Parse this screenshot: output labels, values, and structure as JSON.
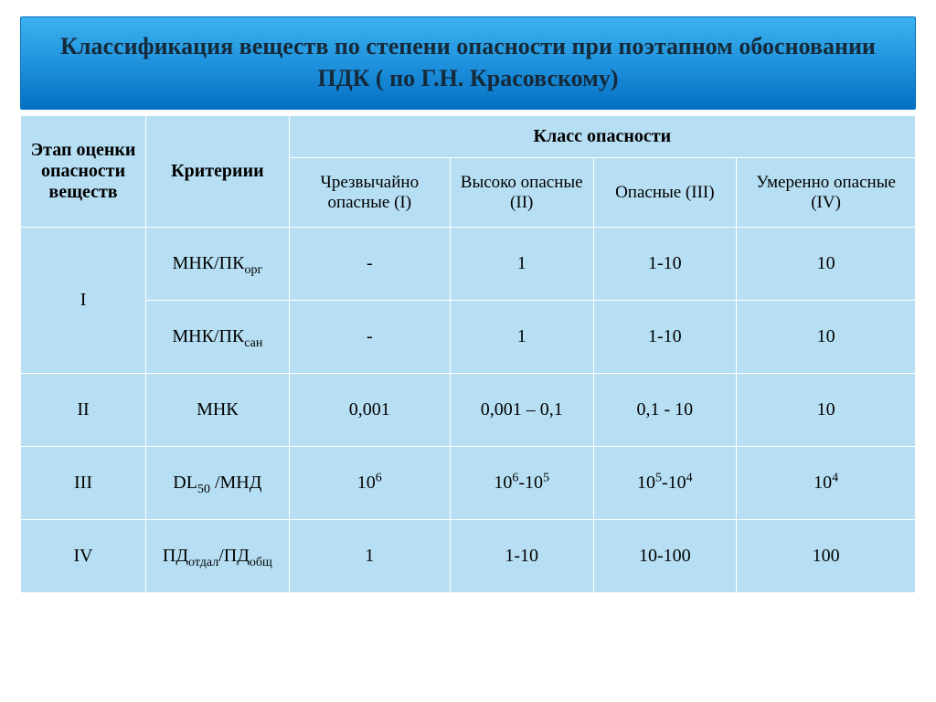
{
  "colors": {
    "header_gradient_top": "#3cb3ef",
    "header_gradient_mid": "#1d8fdb",
    "header_gradient_bottom": "#0570c2",
    "cell_bg": "#b7dff3",
    "cell_border": "#ffffff",
    "title_text": "#152a3a",
    "body_text": "#000000"
  },
  "typography": {
    "title_fontsize_pt": 20,
    "header_fontsize_pt": 15,
    "body_fontsize_pt": 15,
    "font_family": "Times New Roman"
  },
  "title": "Классификация веществ по степени опасности при поэтапном обосновании ПДК ( по Г.Н. Красовскому)",
  "table": {
    "type": "table",
    "header": {
      "stage_col": "Этап оценки опасности веществ",
      "criteria_col": "Критериии",
      "class_group": "Класс опасности",
      "classes": [
        "Чрезвычайно опасные (I)",
        "Высоко опасные (II)",
        "Опасные (III)",
        "Умеренно опасные (IV)"
      ]
    },
    "column_widths_pct": [
      14,
      16,
      18,
      16,
      16,
      20
    ],
    "rows": [
      {
        "stage": "I",
        "stage_rowspan": 2,
        "criterion_html": "МНК/ПК<sub>орг</sub>",
        "values": [
          "-",
          "1",
          "1-10",
          "10"
        ]
      },
      {
        "stage": "",
        "stage_rowspan": 0,
        "criterion_html": "МНК/ПК<sub>сан</sub>",
        "values": [
          "-",
          "1",
          "1-10",
          "10"
        ]
      },
      {
        "stage": "II",
        "stage_rowspan": 1,
        "criterion_html": "МНК",
        "values": [
          "0,001",
          "0,001 – 0,1",
          "0,1 - 10",
          "10"
        ]
      },
      {
        "stage": "III",
        "stage_rowspan": 1,
        "criterion_html": "DL<sub>50</sub> /МНД",
        "values_html": [
          "10<sup>6</sup>",
          "10<sup>6</sup>-10<sup>5</sup>",
          "10<sup>5</sup>-10<sup>4</sup>",
          "10<sup>4</sup>"
        ]
      },
      {
        "stage": "IV",
        "stage_rowspan": 1,
        "criterion_html": "ПД<sub>отдал</sub>/ПД<sub>общ</sub>",
        "values": [
          "1",
          "1-10",
          "10-100",
          "100"
        ]
      }
    ]
  }
}
